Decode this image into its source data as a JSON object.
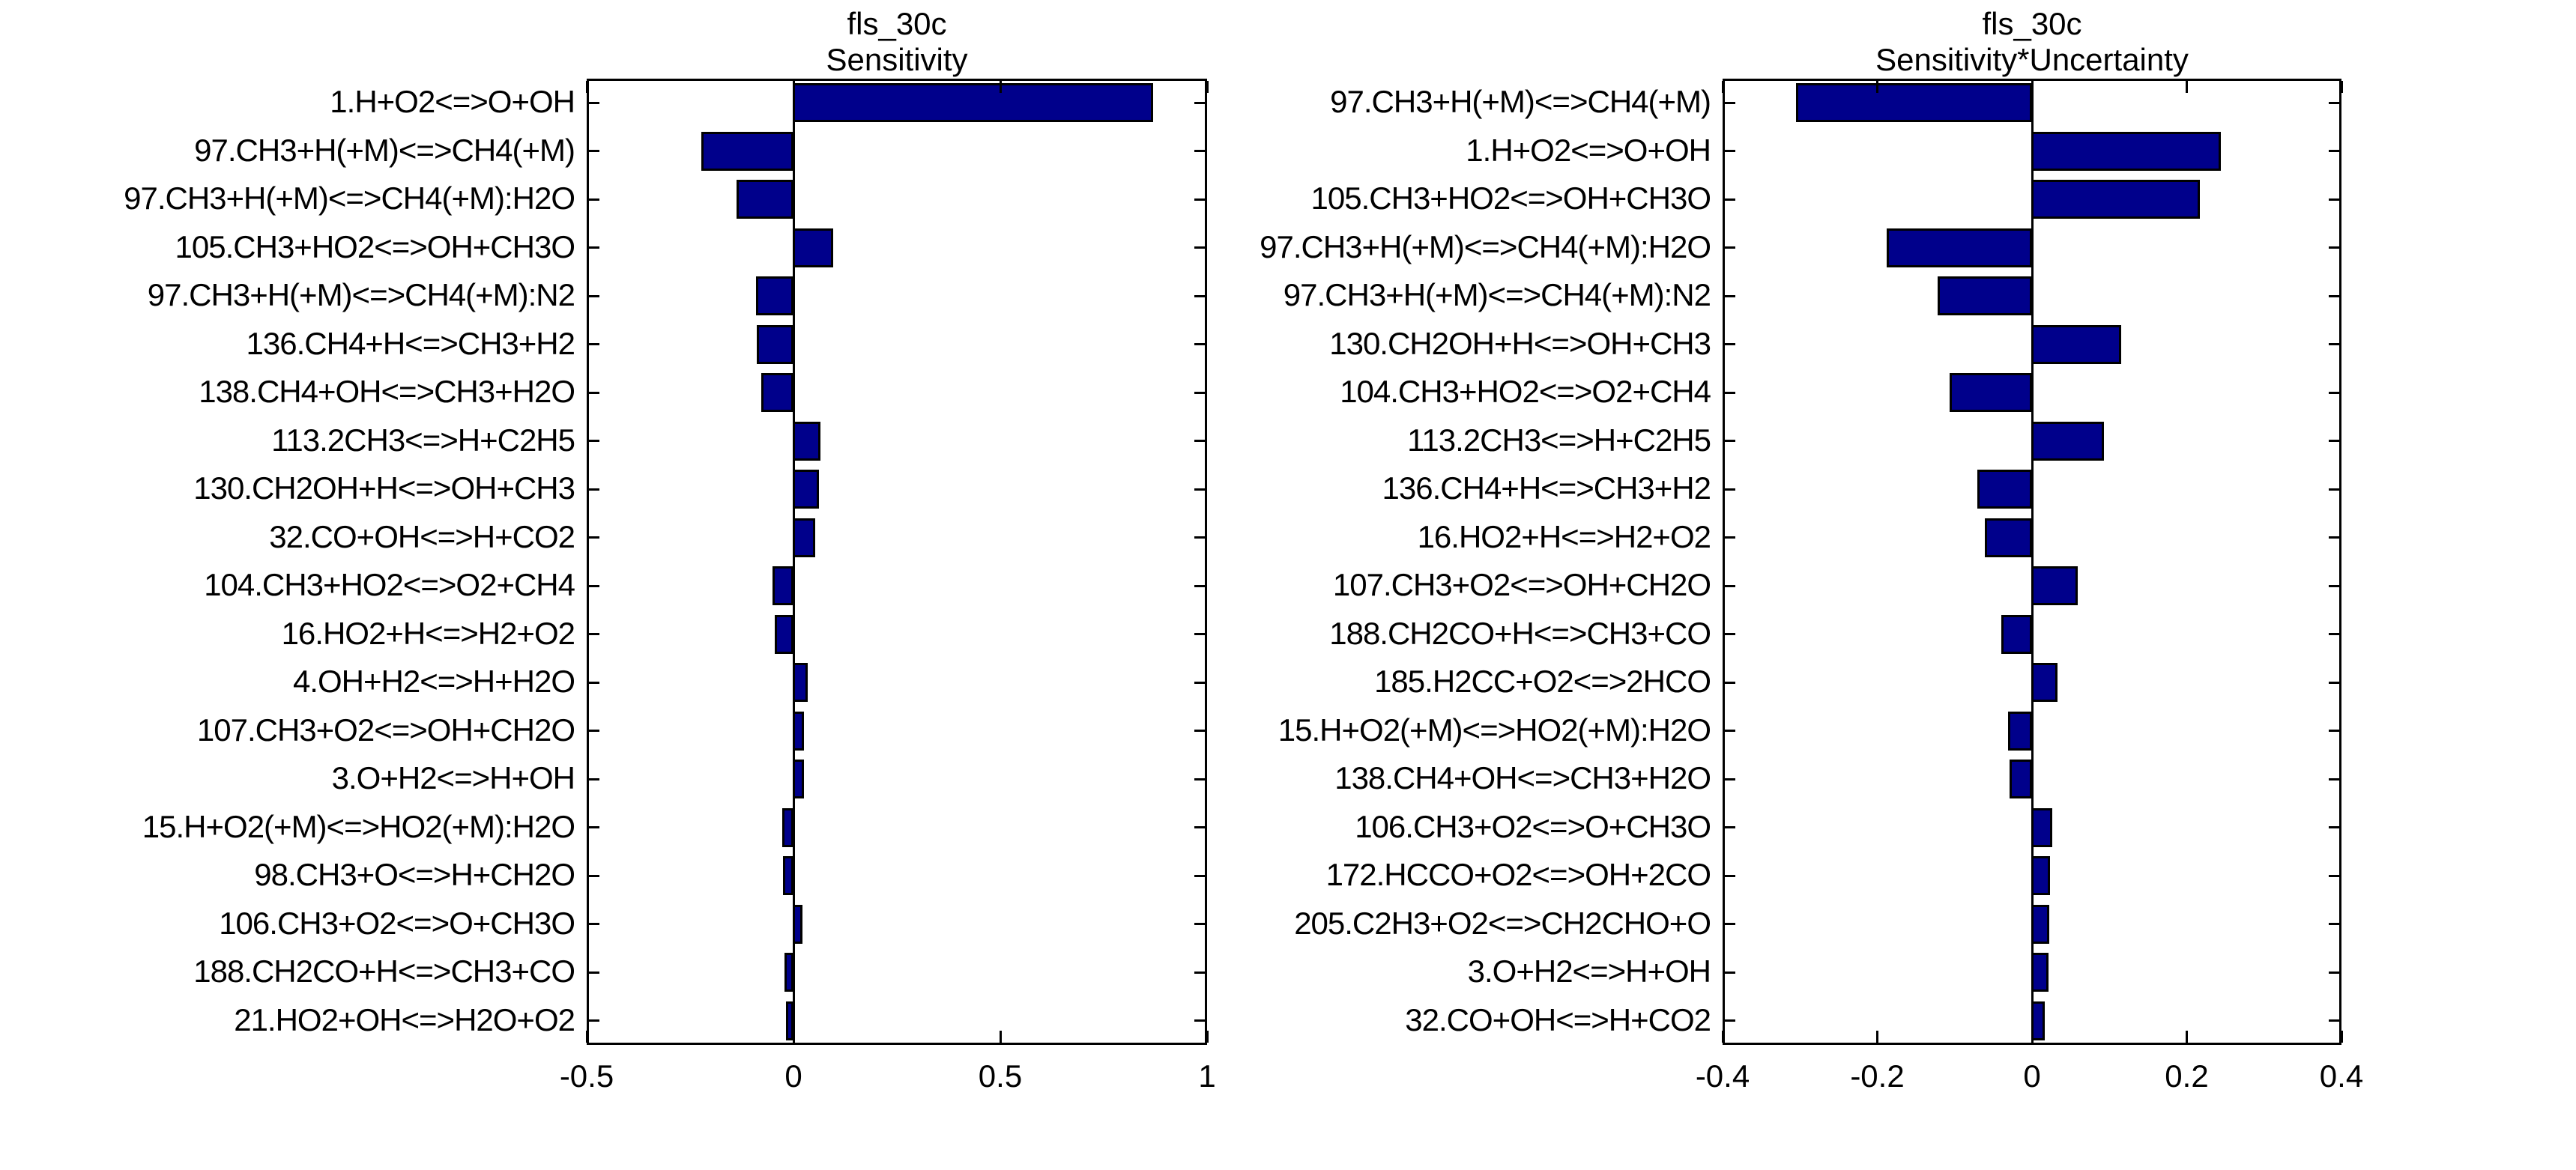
{
  "colors": {
    "bar": "#00008B",
    "axis": "#000000",
    "background": "#FFFFFF"
  },
  "chart_data": [
    {
      "type": "bar",
      "orientation": "horizontal",
      "title_lines": [
        "fls_30c",
        "Sensitivity"
      ],
      "xlabel": "",
      "ylabel": "",
      "xlim": [
        -0.5,
        1
      ],
      "x_tick_values": [
        -0.5,
        0,
        0.5,
        1
      ],
      "x_tick_labels": [
        "-0.5",
        "0",
        "0.5",
        "1"
      ],
      "grid": false,
      "legend": "none",
      "categories": [
        "1.H+O2<=>O+OH",
        "97.CH3+H(+M)<=>CH4(+M)",
        "97.CH3+H(+M)<=>CH4(+M):H2O",
        "105.CH3+HO2<=>OH+CH3O",
        "97.CH3+H(+M)<=>CH4(+M):N2",
        "136.CH4+H<=>CH3+H2",
        "138.CH4+OH<=>CH3+H2O",
        "113.2CH3<=>H+C2H5",
        "130.CH2OH+H<=>OH+CH3",
        "32.CO+OH<=>H+CO2",
        "104.CH3+HO2<=>O2+CH4",
        "16.HO2+H<=>H2+O2",
        "4.OH+H2<=>H+H2O",
        "107.CH3+O2<=>OH+CH2O",
        "3.O+H2<=>H+OH",
        "15.H+O2(+M)<=>HO2(+M):H2O",
        "98.CH3+O<=>H+CH2O",
        "106.CH3+O2<=>O+CH3O",
        "188.CH2CO+H<=>CH3+CO",
        "21.HO2+OH<=>H2O+O2"
      ],
      "values": [
        0.87,
        -0.22,
        -0.135,
        0.096,
        -0.087,
        -0.086,
        -0.076,
        0.065,
        0.061,
        0.052,
        -0.048,
        -0.043,
        0.034,
        0.026,
        0.025,
        -0.024,
        -0.022,
        0.021,
        -0.019,
        -0.015
      ]
    },
    {
      "type": "bar",
      "orientation": "horizontal",
      "title_lines": [
        "fls_30c",
        "Sensitivity*Uncertainty"
      ],
      "xlabel": "",
      "ylabel": "",
      "xlim": [
        -0.4,
        0.4
      ],
      "x_tick_values": [
        -0.4,
        -0.2,
        0,
        0.2,
        0.4
      ],
      "x_tick_labels": [
        "-0.4",
        "-0.2",
        "0",
        "0.2",
        "0.4"
      ],
      "grid": false,
      "legend": "none",
      "categories": [
        "97.CH3+H(+M)<=>CH4(+M)",
        "1.H+O2<=>O+OH",
        "105.CH3+HO2<=>OH+CH3O",
        "97.CH3+H(+M)<=>CH4(+M):H2O",
        "97.CH3+H(+M)<=>CH4(+M):N2",
        "130.CH2OH+H<=>OH+CH3",
        "104.CH3+HO2<=>O2+CH4",
        "113.2CH3<=>H+C2H5",
        "136.CH4+H<=>CH3+H2",
        "16.HO2+H<=>H2+O2",
        "107.CH3+O2<=>OH+CH2O",
        "188.CH2CO+H<=>CH3+CO",
        "185.H2CC+O2<=>2HCO",
        "15.H+O2(+M)<=>HO2(+M):H2O",
        "138.CH4+OH<=>CH3+H2O",
        "106.CH3+O2<=>O+CH3O",
        "172.HCCO+O2<=>OH+2CO",
        "205.C2H3+O2<=>CH2CHO+O",
        "3.O+H2<=>H+OH",
        "32.CO+OH<=>H+CO2"
      ],
      "values": [
        -0.304,
        0.244,
        0.217,
        -0.186,
        -0.121,
        0.115,
        -0.105,
        0.093,
        -0.069,
        -0.06,
        0.059,
        -0.038,
        0.033,
        -0.03,
        -0.028,
        0.026,
        0.023,
        0.022,
        0.021,
        0.016
      ]
    }
  ]
}
